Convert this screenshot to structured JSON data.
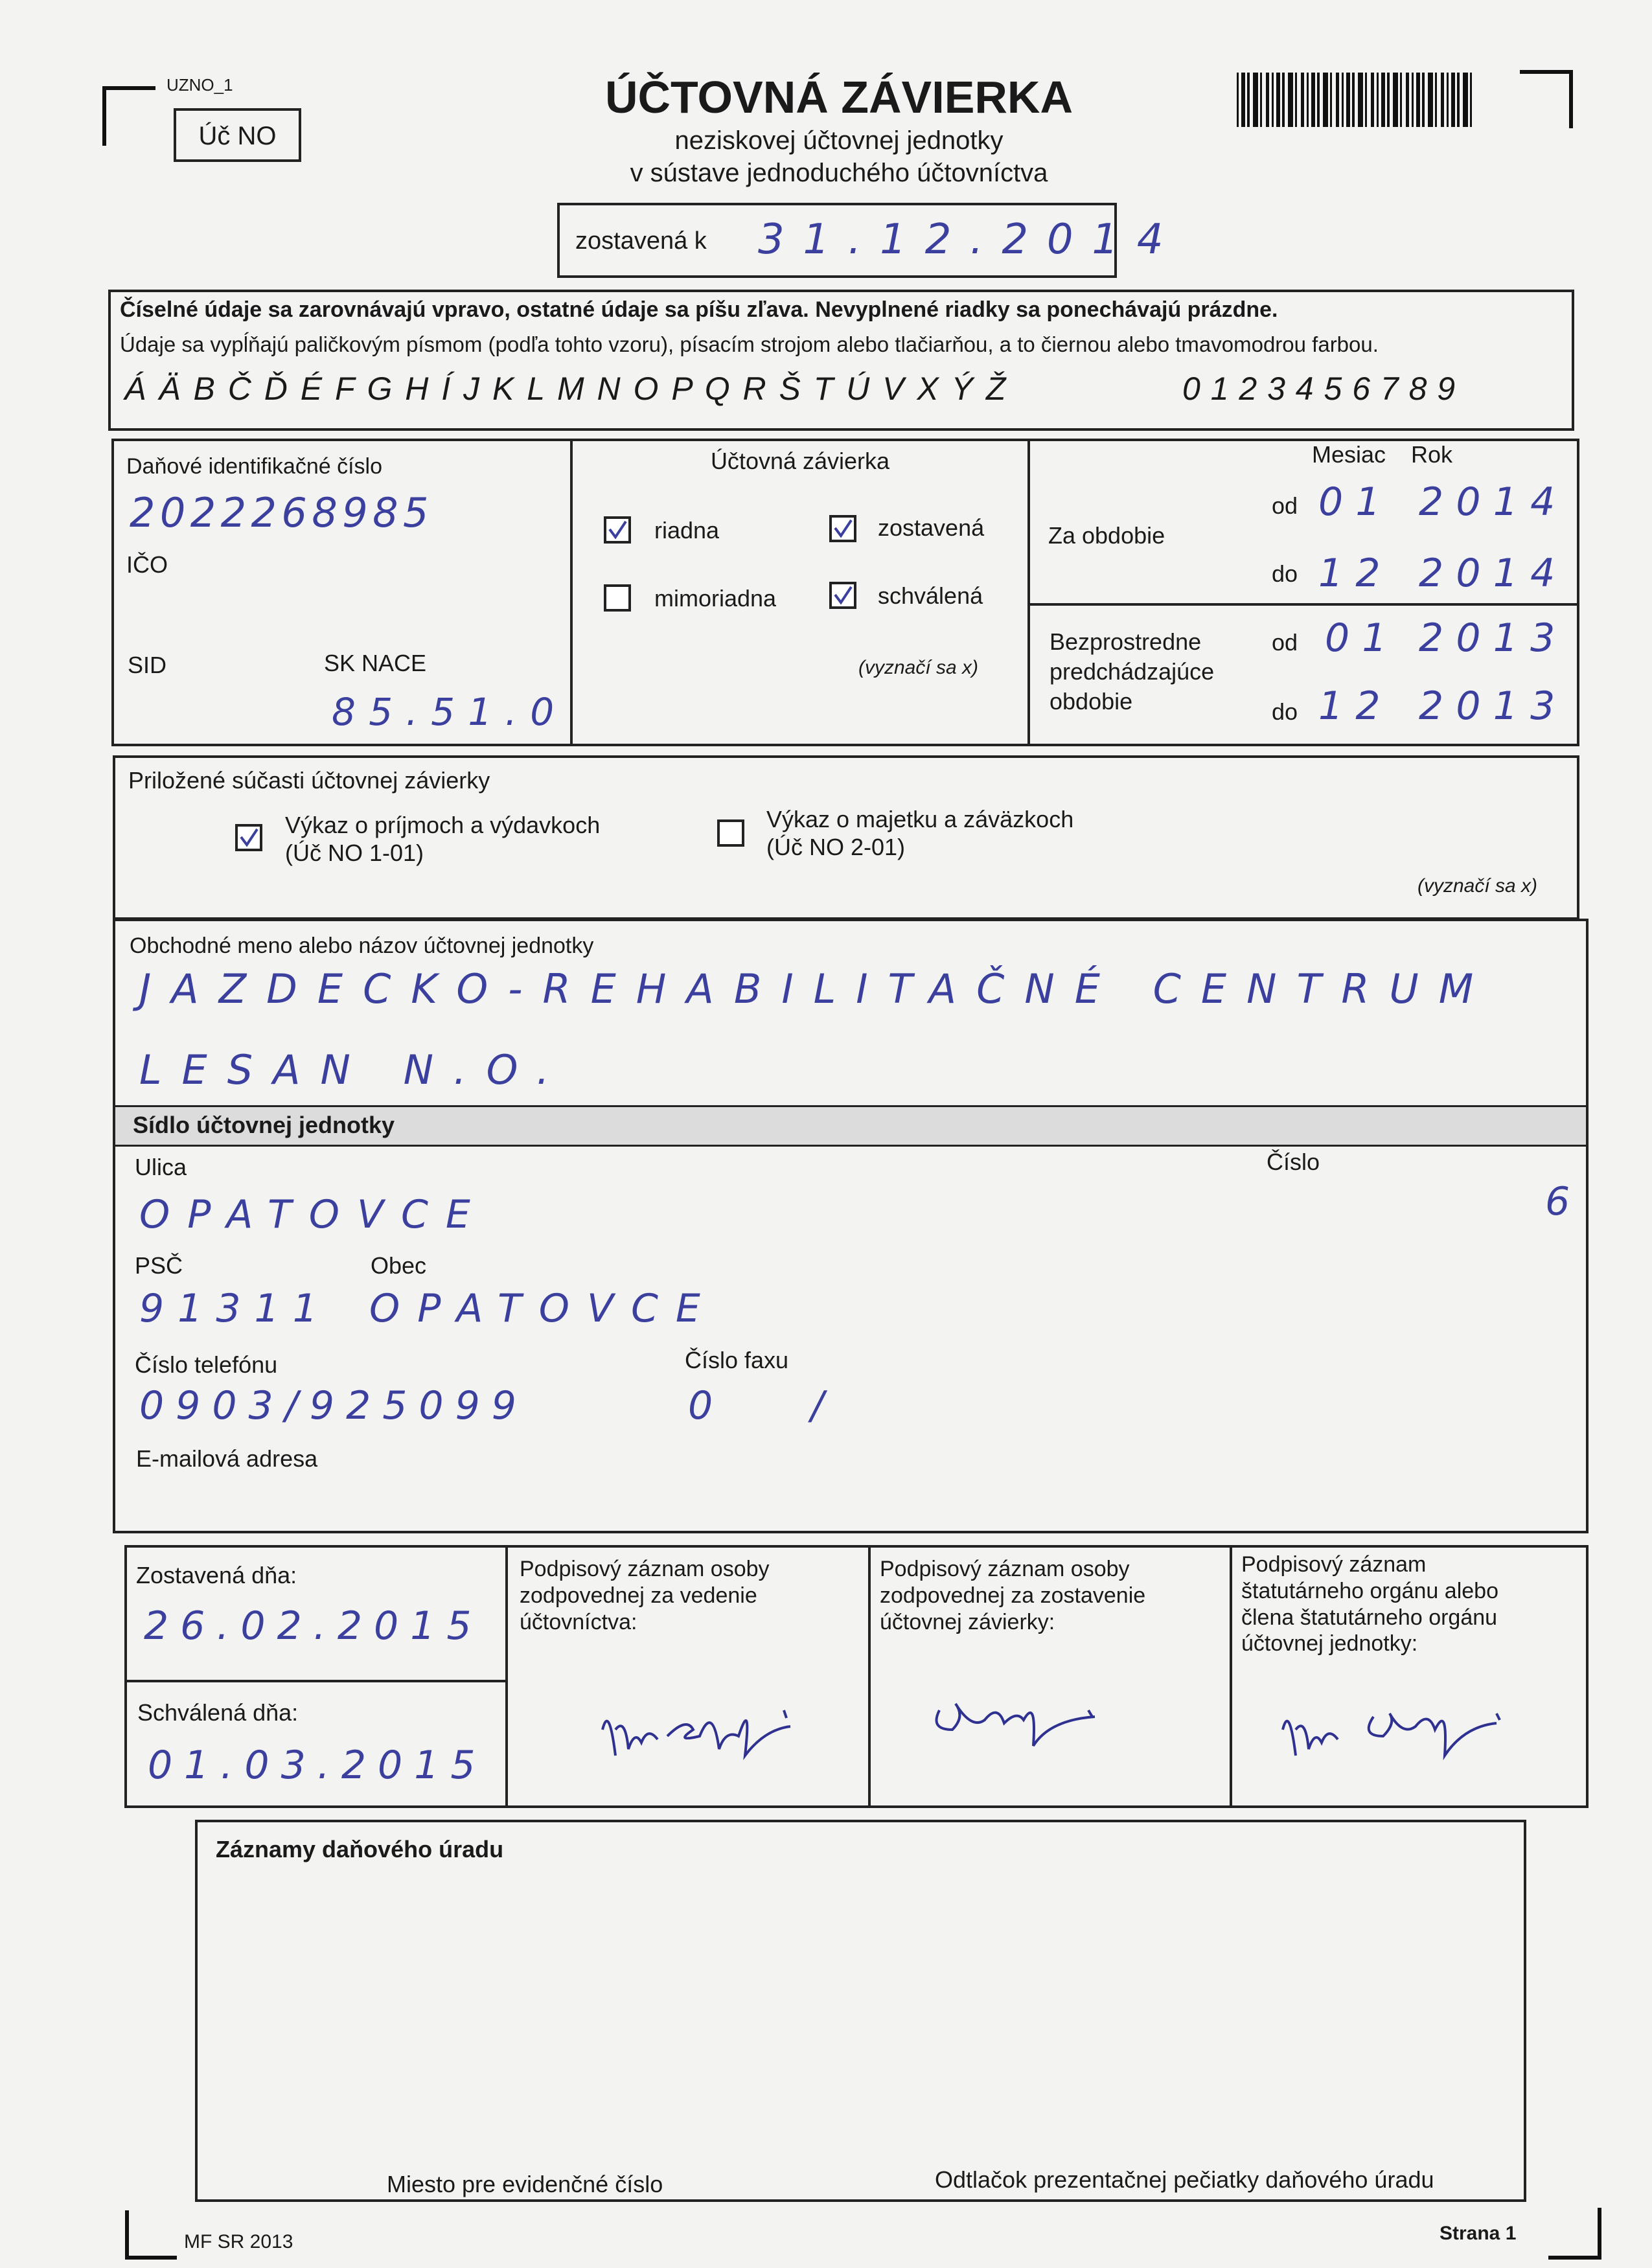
{
  "header": {
    "form_code": "UZNO_1",
    "form_id": "Úč NO",
    "title": "ÚČTOVNÁ ZÁVIERKA",
    "subtitle_1": "neziskovej účtovnej jednotky",
    "subtitle_2": "v sústave jednoduchého účtovníctva",
    "compiled_as_of_label": "zostavená k",
    "compiled_as_of": "31.12.2014"
  },
  "instructions": {
    "line_1": "Číselné údaje sa zarovnávajú vpravo, ostatné údaje sa píšu zľava. Nevyplnené riadky sa ponechávajú prázdne.",
    "line_2": "Údaje sa vypĺňajú paličkovým písmom (podľa tohto vzoru), písacím strojom alebo tlačiarňou, a to čiernou alebo tmavomodrou farbou.",
    "sample_letters": "Á Ä B Č Ď É F G H Í J K L M N O P Q R Š T Ú V X Ý Ž",
    "sample_digits": "0 1 2 3 4 5 6 7 8 9"
  },
  "identification": {
    "tax_id_label": "Daňové identifikačné číslo",
    "tax_id": "2022268985",
    "ico_label": "IČO",
    "sid_label": "SID",
    "nace_label": "SK NACE",
    "nace": "85.51.0",
    "statement_label": "Účtovná závierka",
    "regular": {
      "label": "riadna",
      "checked": true
    },
    "extraordinary": {
      "label": "mimoriadna",
      "checked": false
    },
    "compiled": {
      "label": "zostavená",
      "checked": true
    },
    "approved": {
      "label": "schválená",
      "checked": true
    },
    "mark_note": "(vyznačí sa x)",
    "month_label": "Mesiac",
    "year_label": "Rok",
    "from_label": "od",
    "to_label": "do",
    "period_label": "Za obdobie",
    "period_from_month": "01",
    "period_from_year": "2014",
    "period_to_month": "12",
    "period_to_year": "2014",
    "previous_label": "Bezprostredne\npredchádzajúce\nobdobie",
    "previous_from_month": "01",
    "previous_from_year": "2013",
    "previous_to_month": "12",
    "previous_to_year": "2013"
  },
  "attachments": {
    "label": "Priložené súčasti účtovnej závierky",
    "income": {
      "label": "Výkaz o príjmoch a výdavkoch\n(Úč NO 1-01)",
      "checked": true
    },
    "assets": {
      "label": "Výkaz o majetku a záväzkoch\n(Úč NO 2-01)",
      "checked": false
    },
    "mark_note": "(vyznačí sa x)"
  },
  "entity": {
    "name_label": "Obchodné meno alebo názov účtovnej jednotky",
    "name_line_1": "JAZDECKO-REHABILITAČNÉ CENTRUM",
    "name_line_2": "LESAN N.O.",
    "seat_label": "Sídlo účtovnej jednotky",
    "street_label": "Ulica",
    "street": "OPATOVCE",
    "number_label": "Číslo",
    "number": "6",
    "postcode_label": "PSČ",
    "postcode": "91311",
    "town_label": "Obec",
    "town": "OPATOVCE",
    "phone_label": "Číslo telefónu",
    "phone": "0903/925099",
    "fax_label": "Číslo faxu",
    "fax": "0    /",
    "email_label": "E-mailová adresa"
  },
  "signatures": {
    "compiled_on_label": "Zostavená dňa:",
    "compiled_on": "26.02.2015",
    "approved_on_label": "Schválená dňa:",
    "approved_on": "01.03.2015",
    "accounting_person": "Podpisový záznam osoby\nzodpovednej za vedenie\núčtovníctva:",
    "compiling_person": "Podpisový záznam osoby\nzodpovednej za zostavenie\núčtovnej závierky:",
    "statutory_body": "Podpisový záznam\nštatutárneho orgánu alebo\nčlena štatutárneho orgánu\núčtovnej jednotky:"
  },
  "tax_office": {
    "title": "Záznamy daňového úradu",
    "registration_place": "Miesto pre evidenčné číslo",
    "stamp_place": "Odtlačok prezentačnej pečiatky daňového úradu"
  },
  "footer": {
    "edition": "MF SR 2013",
    "page": "Strana 1"
  }
}
